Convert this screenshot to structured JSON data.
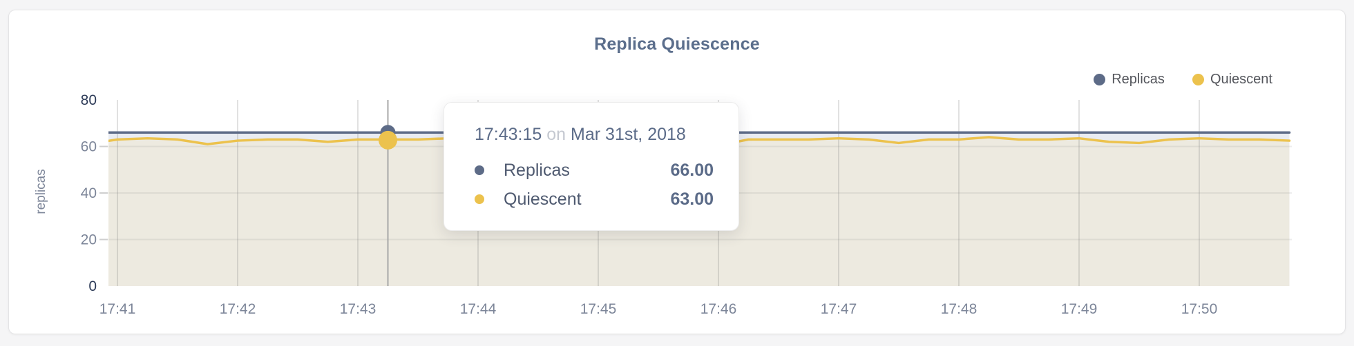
{
  "chart": {
    "title": "Replica Quiescence",
    "y_axis_label": "replicas",
    "legend": [
      {
        "label": "Replicas",
        "color": "#5d6b87"
      },
      {
        "label": "Quiescent",
        "color": "#ecc24d"
      }
    ]
  },
  "chart_data": {
    "type": "line",
    "title": "Replica Quiescence",
    "xlabel": "",
    "ylabel": "replicas",
    "ylim": [
      0,
      80
    ],
    "y_ticks": [
      0,
      20,
      40,
      60,
      80
    ],
    "x_ticks": [
      "17:41",
      "17:42",
      "17:43",
      "17:44",
      "17:45",
      "17:46",
      "17:47",
      "17:48",
      "17:49",
      "17:50"
    ],
    "grid": true,
    "legend_position": "top-right",
    "x": [
      "17:40:45",
      "17:41:00",
      "17:41:15",
      "17:41:30",
      "17:41:45",
      "17:42:00",
      "17:42:15",
      "17:42:30",
      "17:42:45",
      "17:43:00",
      "17:43:15",
      "17:43:30",
      "17:43:45",
      "17:44:00",
      "17:44:15",
      "17:44:30",
      "17:44:45",
      "17:45:00",
      "17:45:15",
      "17:45:30",
      "17:45:45",
      "17:46:00",
      "17:46:15",
      "17:46:30",
      "17:46:45",
      "17:47:00",
      "17:47:15",
      "17:47:30",
      "17:47:45",
      "17:48:00",
      "17:48:15",
      "17:48:30",
      "17:48:45",
      "17:49:00",
      "17:49:15",
      "17:49:30",
      "17:49:45",
      "17:50:00",
      "17:50:15",
      "17:50:30",
      "17:50:45"
    ],
    "series": [
      {
        "name": "Replicas",
        "color": "#5d6b87",
        "fill": "#e9ecf2",
        "values": [
          66,
          66,
          66,
          66,
          66,
          66,
          66,
          66,
          66,
          66,
          66,
          66,
          66,
          66,
          66,
          66,
          66,
          66,
          66,
          66,
          66,
          66,
          66,
          66,
          66,
          66,
          66,
          66,
          66,
          66,
          66,
          66,
          66,
          66,
          66,
          66,
          66,
          66,
          66,
          66,
          66
        ]
      },
      {
        "name": "Quiescent",
        "color": "#ecc24d",
        "fill": "#edeae0",
        "values": [
          61,
          63,
          63.5,
          63,
          61,
          62.5,
          63,
          63,
          62,
          63,
          63,
          63,
          63.5,
          63,
          63,
          63,
          63,
          63.5,
          63,
          63,
          62,
          60.5,
          63,
          63,
          63,
          63.5,
          63,
          61.5,
          63,
          63,
          64,
          63,
          63,
          63.5,
          62,
          61.5,
          63,
          63.5,
          63,
          63,
          62.5
        ]
      }
    ]
  },
  "tooltip": {
    "time": "17:43:15",
    "connector": "on",
    "date": "Mar 31st, 2018",
    "rows": [
      {
        "label": "Replicas",
        "value": "66.00",
        "color": "#5d6b87"
      },
      {
        "label": "Quiescent",
        "value": "63.00",
        "color": "#ecc24d"
      }
    ]
  }
}
